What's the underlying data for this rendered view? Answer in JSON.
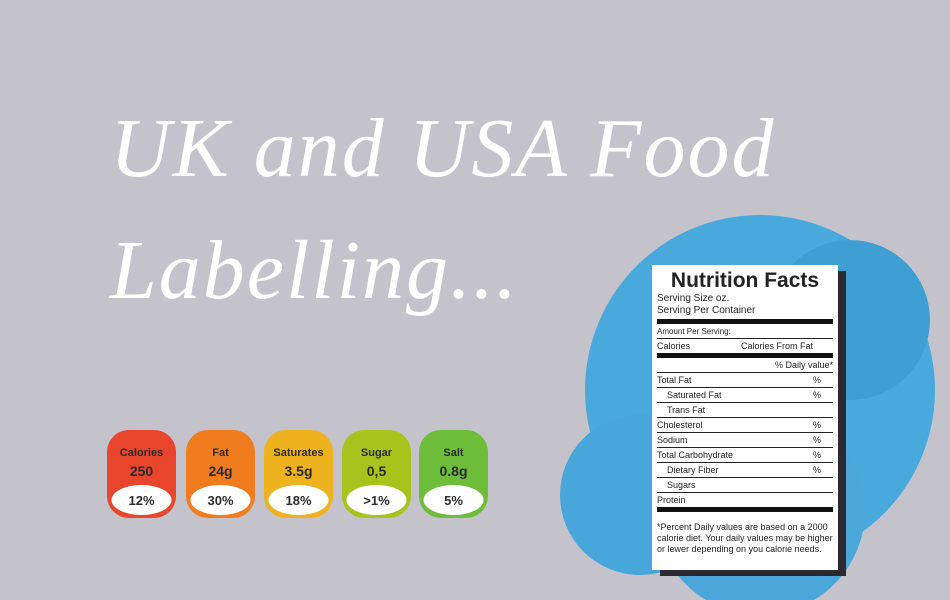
{
  "header": {
    "title_lines": [
      "UK and USA Food",
      "Labelling..."
    ]
  },
  "traffic_labels": [
    {
      "name": "Calories",
      "amount": "250",
      "percent": "12%",
      "color": "#e8452c"
    },
    {
      "name": "Fat",
      "amount": "24g",
      "percent": "30%",
      "color": "#f07c1e"
    },
    {
      "name": "Saturates",
      "amount": "3.5g",
      "percent": "18%",
      "color": "#eeb21f"
    },
    {
      "name": "Sugar",
      "amount": "0,5",
      "percent": ">1%",
      "color": "#a9c31d"
    },
    {
      "name": "Salt",
      "amount": "0.8g",
      "percent": "5%",
      "color": "#6dbd3a"
    }
  ],
  "nutrition": {
    "title": "Nutrition Facts",
    "serving": [
      "Serving Size oz.",
      "Serving Per Container"
    ],
    "amount": "Amount Per Serving:",
    "calories": "Calories",
    "calories_from_fat": "Calories From Fat",
    "daily_value": "% Daily value*",
    "rows": [
      {
        "label": "Total Fat",
        "pct": "%"
      },
      {
        "label": "Saturated Fat",
        "pct": "%",
        "indent": true
      },
      {
        "label": "Trans Fat",
        "indent": true
      },
      {
        "label": "Cholesterol",
        "pct": "%"
      },
      {
        "label": "Sodium",
        "pct": "%"
      },
      {
        "label": "Total Carbohydrate",
        "pct": "%"
      },
      {
        "label": "Dietary Fiber",
        "pct": "%",
        "indent": true
      },
      {
        "label": "Sugars",
        "indent": true
      },
      {
        "label": "Protein"
      }
    ],
    "footnote": "*Percent Daily values are based on a 2000 calorie diet. Your daily values may be higher or lewer depending on you calorie needs."
  }
}
